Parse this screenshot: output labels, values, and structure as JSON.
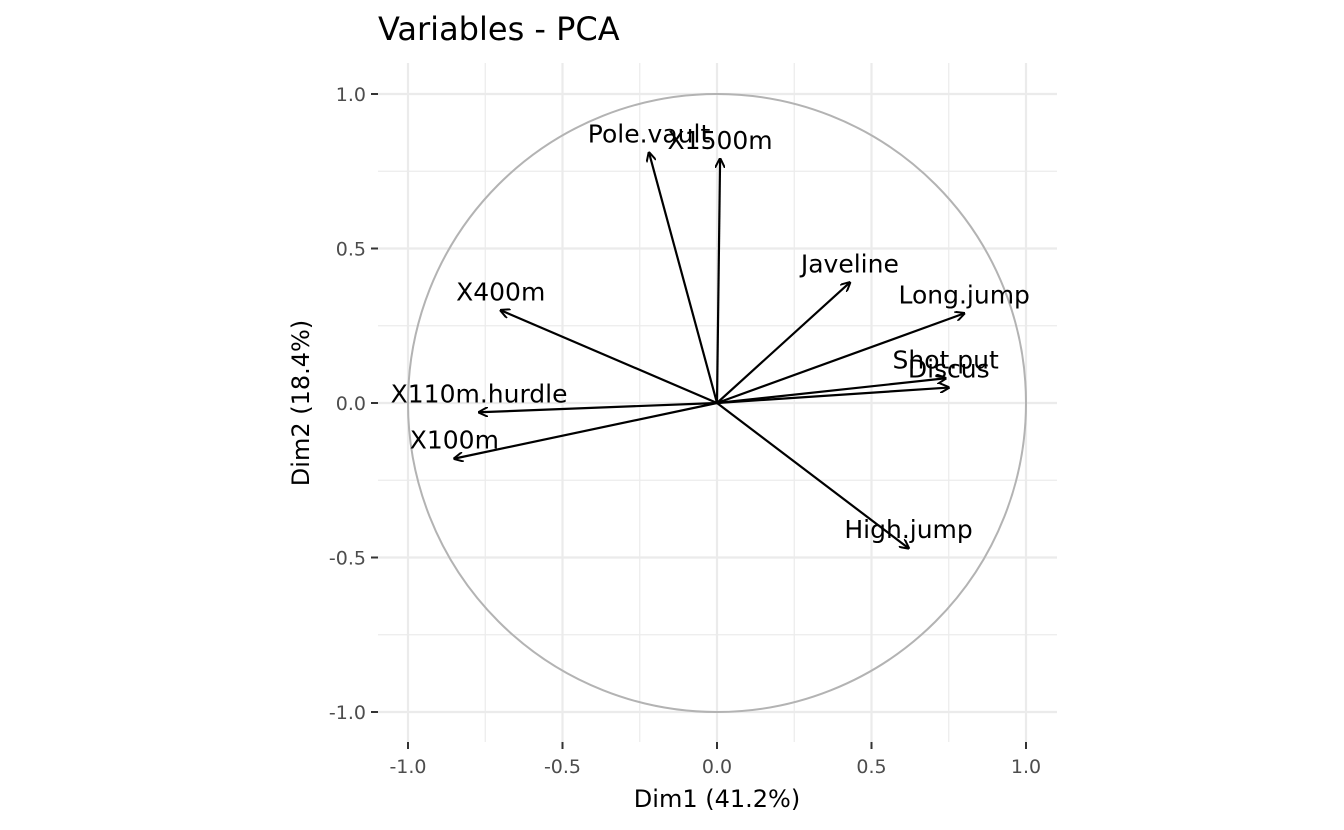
{
  "chart_data": {
    "type": "scatter",
    "subtype": "pca-correlation-circle",
    "title": "Variables - PCA",
    "xlabel": "Dim1 (41.2%)",
    "ylabel": "Dim2 (18.4%)",
    "xlim": [
      -1.0,
      1.0
    ],
    "ylim": [
      -1.0,
      1.0
    ],
    "x_ticks": [
      -1.0,
      -0.5,
      0.0,
      0.5,
      1.0
    ],
    "y_ticks": [
      -1.0,
      -0.5,
      0.0,
      0.5,
      1.0
    ],
    "x_tick_labels": [
      "-1.0",
      "-0.5",
      "0.0",
      "0.5",
      "1.0"
    ],
    "y_tick_labels": [
      "-1.0",
      "-0.5",
      "0.0",
      "0.5",
      "1.0"
    ],
    "grid": true,
    "correlation_circle_radius": 1.0,
    "variables": [
      {
        "name": "X100m",
        "x": -0.85,
        "y": -0.18
      },
      {
        "name": "Long.jump",
        "x": 0.8,
        "y": 0.29
      },
      {
        "name": "Shot.put",
        "x": 0.74,
        "y": 0.08
      },
      {
        "name": "High.jump",
        "x": 0.62,
        "y": -0.47
      },
      {
        "name": "X400m",
        "x": -0.7,
        "y": 0.3
      },
      {
        "name": "X110m.hurdle",
        "x": -0.77,
        "y": -0.03
      },
      {
        "name": "Discus",
        "x": 0.75,
        "y": 0.05
      },
      {
        "name": "Pole.vault",
        "x": -0.22,
        "y": 0.81
      },
      {
        "name": "Javeline",
        "x": 0.43,
        "y": 0.39
      },
      {
        "name": "X1500m",
        "x": 0.01,
        "y": 0.79
      }
    ]
  },
  "colors": {
    "background": "#ffffff",
    "grid": "#ebebeb",
    "circle": "#b3b3b3",
    "arrow": "#000000",
    "tick_label": "#4d4d4d"
  }
}
